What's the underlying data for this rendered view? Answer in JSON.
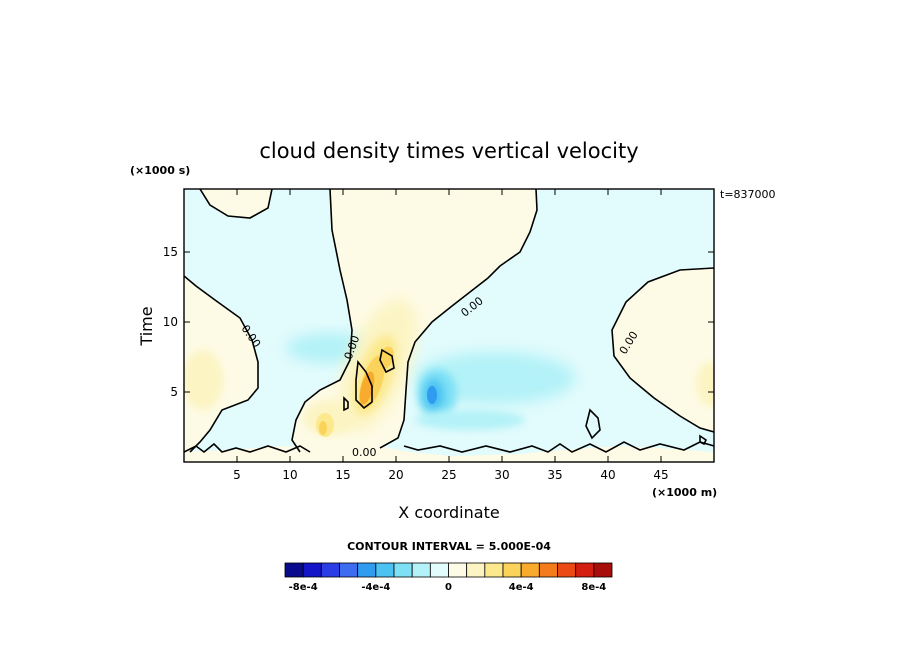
{
  "chart_data": {
    "type": "heatmap",
    "title": "cloud density times vertical velocity",
    "xlabel": "X coordinate",
    "ylabel": "Time",
    "x_unit": "(×1000 m)",
    "y_unit": "(×1000 s)",
    "time_stamp": "t=837000",
    "xlim": [
      0,
      50
    ],
    "ylim": [
      0,
      19.5
    ],
    "x_ticks": [
      5,
      10,
      15,
      20,
      25,
      30,
      35,
      40,
      45
    ],
    "y_ticks": [
      5,
      10,
      15
    ],
    "contour_interval_text": "CONTOUR INTERVAL = 5.000E-04",
    "zero_contour_label": "0.00",
    "colorbar": {
      "colors": [
        "#0a0a8c",
        "#1414c8",
        "#2b3ee6",
        "#3c6cf0",
        "#2f9cf0",
        "#4cc2f2",
        "#7ee0f5",
        "#b2f2f8",
        "#e2fbfc",
        "#fdfbe6",
        "#fcf4c2",
        "#fce98e",
        "#fbd35a",
        "#f8ab2c",
        "#f47c1c",
        "#ec4a14",
        "#d41e10",
        "#a80e0a"
      ],
      "tick_labels": [
        "-8e-4",
        "-4e-4",
        "0",
        "4e-4",
        "8e-4"
      ],
      "tick_values": [
        -0.0008,
        -0.0004,
        0,
        0.0004,
        0.0008
      ]
    },
    "features": [
      {
        "kind": "positive_max",
        "x": 17.5,
        "t": 5.5,
        "level": 0.00055
      },
      {
        "kind": "positive_max",
        "x": 19.0,
        "t": 7.5,
        "level": 0.0004
      },
      {
        "kind": "positive",
        "x": 13.0,
        "t": 2.5,
        "level": 0.0003
      },
      {
        "kind": "negative_min",
        "x": 23.5,
        "t": 4.5,
        "level": -0.00045
      },
      {
        "kind": "negative",
        "x": 30.0,
        "t": 7.0,
        "level": -0.0002
      },
      {
        "kind": "negative",
        "x": 15.0,
        "t": 8.0,
        "level": -0.0002
      }
    ]
  }
}
